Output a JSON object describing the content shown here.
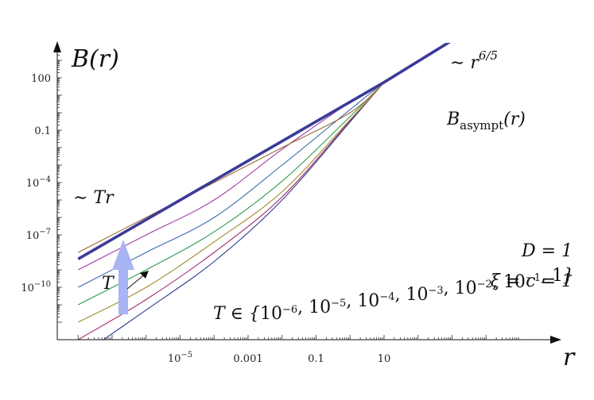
{
  "chart_data": {
    "type": "line",
    "scale": "log-log",
    "xlabel": "r",
    "ylabel": "B(r)",
    "xlim": [
      1e-08,
      10000
    ],
    "ylim": [
      1e-12,
      10000
    ],
    "x_ticks": [
      {
        "value": 1e-05,
        "mantissa": "10",
        "exponent": "−5"
      },
      {
        "value": 0.001,
        "text": "0.001"
      },
      {
        "value": 0.1,
        "text": "0.1"
      },
      {
        "value": 10,
        "text": "10"
      }
    ],
    "y_ticks": [
      {
        "value": 1e-10,
        "mantissa": "10",
        "exponent": "−10"
      },
      {
        "value": 1e-07,
        "mantissa": "10",
        "exponent": "−7"
      },
      {
        "value": 0.0001,
        "mantissa": "10",
        "exponent": "−4"
      },
      {
        "value": 0.1,
        "text": "0.1"
      },
      {
        "value": 100,
        "text": "100"
      }
    ],
    "grid": false,
    "asymptote": {
      "label_base": "B",
      "label_sub": "asympt",
      "label_arg": "(r)",
      "color": "#3b3b98",
      "points": [
        [
          1e-08,
          4.2e-09
        ],
        [
          10,
          55
        ],
        [
          10000,
          220000.0
        ]
      ]
    },
    "series": [
      {
        "T": "10^-6",
        "color": "#2f3d8f",
        "points": [
          [
            1e-08,
            1e-14
          ],
          [
            1e-06,
            5e-12
          ],
          [
            0.0001,
            3e-09
          ],
          [
            0.01,
            1e-05
          ],
          [
            1,
            0.3
          ],
          [
            10,
            55
          ]
        ]
      },
      {
        "T": "10^-5",
        "color": "#a0286e",
        "points": [
          [
            1e-08,
            1e-13
          ],
          [
            1e-06,
            2e-11
          ],
          [
            0.0001,
            1e-08
          ],
          [
            0.01,
            1.5e-05
          ],
          [
            1,
            0.35
          ],
          [
            10,
            55
          ]
        ]
      },
      {
        "T": "10^-4",
        "color": "#a08a2a",
        "points": [
          [
            1e-08,
            1e-12
          ],
          [
            1e-06,
            1e-10
          ],
          [
            0.0001,
            4e-08
          ],
          [
            0.01,
            3e-05
          ],
          [
            1,
            0.4
          ],
          [
            10,
            55
          ]
        ]
      },
      {
        "T": "10^-3",
        "color": "#2f9a4f",
        "points": [
          [
            1e-08,
            1e-11
          ],
          [
            1e-06,
            1e-09
          ],
          [
            0.0001,
            1.5e-07
          ],
          [
            0.01,
            0.00012
          ],
          [
            1,
            0.6
          ],
          [
            10,
            55
          ]
        ]
      },
      {
        "T": "10^-2",
        "color": "#3b6aa8",
        "points": [
          [
            1e-08,
            1e-10
          ],
          [
            1e-06,
            1e-08
          ],
          [
            0.0001,
            1e-06
          ],
          [
            0.01,
            0.001
          ],
          [
            1,
            1.5
          ],
          [
            10,
            55
          ]
        ]
      },
      {
        "T": "10^-1",
        "color": "#a038a0",
        "points": [
          [
            1e-08,
            1e-09
          ],
          [
            1e-06,
            1e-07
          ],
          [
            0.0001,
            1e-05
          ],
          [
            0.01,
            0.008
          ],
          [
            1,
            4
          ],
          [
            10,
            55
          ]
        ]
      },
      {
        "T": "1",
        "color": "#9a6a3a",
        "points": [
          [
            1e-08,
            1e-08
          ],
          [
            1e-06,
            1e-06
          ],
          [
            0.0001,
            0.0001
          ],
          [
            0.01,
            0.01
          ],
          [
            1,
            1
          ],
          [
            10,
            55
          ]
        ]
      }
    ],
    "annotations": {
      "tr_label": "∼ Tr",
      "power_base": "∼ r",
      "power_exp": "6/5",
      "t_arrow_label": "T",
      "t_arrow_color": "#a8b4f4",
      "params": [
        "D = 1",
        "ξ = c = 1"
      ],
      "t_set_prefix": "T ∈ {",
      "t_set_items": [
        {
          "mantissa": "10",
          "exponent": "−6"
        },
        {
          "mantissa": "10",
          "exponent": "−5"
        },
        {
          "mantissa": "10",
          "exponent": "−4"
        },
        {
          "mantissa": "10",
          "exponent": "−3"
        },
        {
          "mantissa": "10",
          "exponent": "−2"
        },
        {
          "mantissa": "10",
          "exponent": "−1"
        },
        {
          "text": "1"
        }
      ],
      "t_set_suffix": "}"
    }
  }
}
